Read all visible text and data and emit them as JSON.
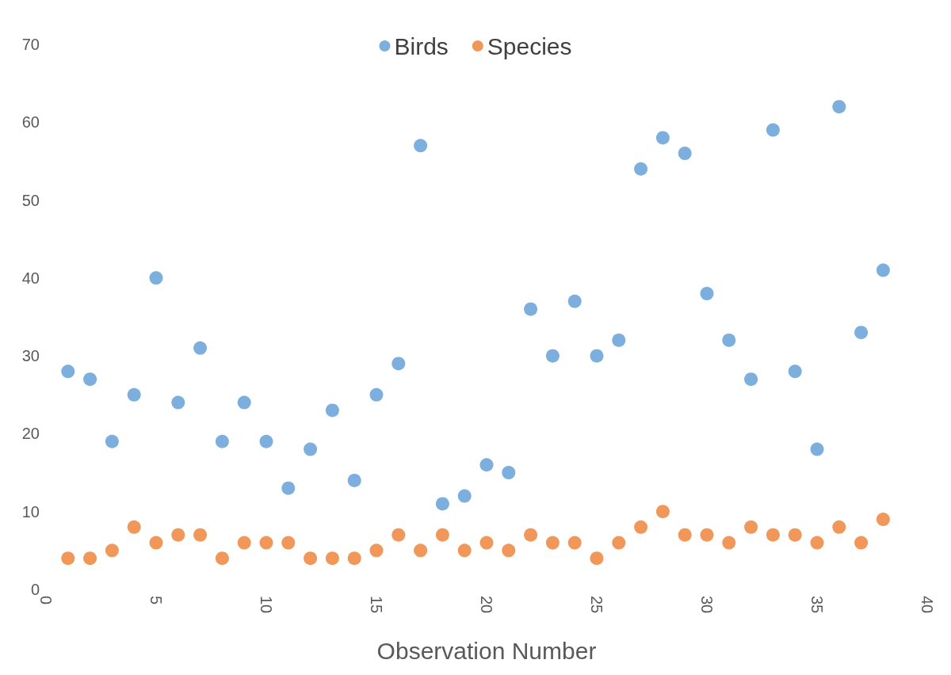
{
  "chart_data": {
    "type": "scatter",
    "xlabel": "Observation Number",
    "x": [
      1,
      2,
      3,
      4,
      5,
      6,
      7,
      8,
      9,
      10,
      11,
      12,
      13,
      14,
      15,
      16,
      17,
      18,
      19,
      20,
      21,
      22,
      23,
      24,
      25,
      26,
      27,
      28,
      29,
      30,
      31,
      32,
      33,
      34,
      35,
      36,
      37,
      38
    ],
    "series": [
      {
        "name": "Birds",
        "color": "#5b9bd5",
        "values": [
          28,
          27,
          19,
          25,
          40,
          24,
          31,
          19,
          24,
          19,
          13,
          18,
          23,
          14,
          25,
          29,
          57,
          11,
          12,
          16,
          15,
          36,
          30,
          37,
          30,
          32,
          54,
          58,
          56,
          38,
          32,
          27,
          59,
          28,
          18,
          62,
          33,
          41
        ]
      },
      {
        "name": "Species",
        "color": "#ed7d31",
        "values": [
          4,
          4,
          5,
          8,
          6,
          7,
          7,
          4,
          6,
          6,
          6,
          4,
          4,
          4,
          5,
          7,
          5,
          7,
          5,
          6,
          5,
          7,
          6,
          6,
          4,
          6,
          8,
          10,
          7,
          7,
          6,
          8,
          7,
          7,
          6,
          8,
          6,
          9
        ]
      }
    ],
    "xlim": [
      0,
      40
    ],
    "xticks": [
      0,
      5,
      10,
      15,
      20,
      25,
      30,
      35,
      40
    ],
    "ylim": [
      0,
      70
    ],
    "yticks": [
      0,
      10,
      20,
      30,
      40,
      50,
      60,
      70
    ],
    "grid": false,
    "legend": "top",
    "marker": "circle"
  }
}
